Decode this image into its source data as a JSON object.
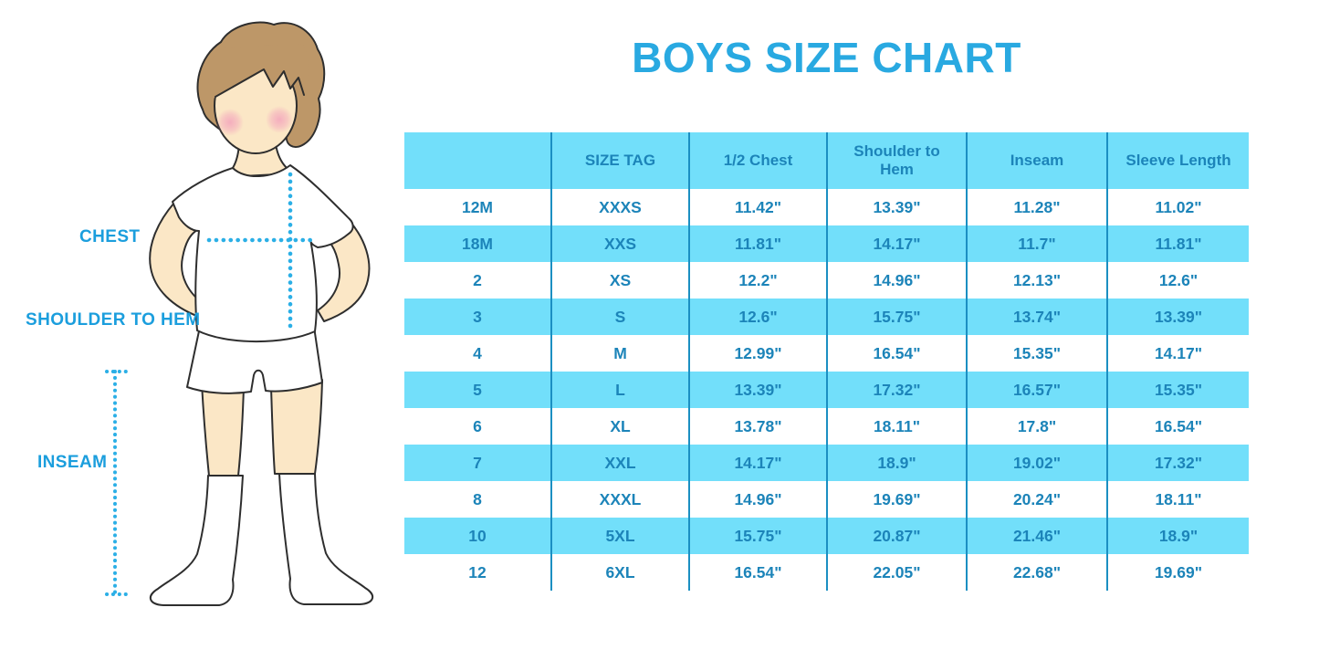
{
  "title": "BOYS SIZE CHART",
  "figure": {
    "chest_label": "CHEST",
    "shoulder_to_hem_label": "SHOULDER TO HEM",
    "inseam_label": "INSEAM"
  },
  "colors": {
    "title_blue": "#29a9e1",
    "label_blue": "#1b9edd",
    "dotted_line_blue": "#2bafe6",
    "row_band_blue": "#72dffa",
    "grid_line_blue": "#1b8fc2",
    "table_text_blue": "#1c84b9",
    "skin": "#fbe7c6",
    "hair": "#bd9768"
  },
  "chart_data": {
    "type": "table",
    "title": "BOYS SIZE CHART",
    "columns": [
      "",
      "SIZE TAG",
      "1/2 Chest",
      "Shoulder to Hem",
      "Inseam",
      "Sleeve Length"
    ],
    "rows": [
      [
        "12M",
        "XXXS",
        "11.42\"",
        "13.39\"",
        "11.28\"",
        "11.02\""
      ],
      [
        "18M",
        "XXS",
        "11.81\"",
        "14.17\"",
        "11.7\"",
        "11.81\""
      ],
      [
        "2",
        "XS",
        "12.2\"",
        "14.96\"",
        "12.13\"",
        "12.6\""
      ],
      [
        "3",
        "S",
        "12.6\"",
        "15.75\"",
        "13.74\"",
        "13.39\""
      ],
      [
        "4",
        "M",
        "12.99\"",
        "16.54\"",
        "15.35\"",
        "14.17\""
      ],
      [
        "5",
        "L",
        "13.39\"",
        "17.32\"",
        "16.57\"",
        "15.35\""
      ],
      [
        "6",
        "XL",
        "13.78\"",
        "18.11\"",
        "17.8\"",
        "16.54\""
      ],
      [
        "7",
        "XXL",
        "14.17\"",
        "18.9\"",
        "19.02\"",
        "17.32\""
      ],
      [
        "8",
        "XXXL",
        "14.96\"",
        "19.69\"",
        "20.24\"",
        "18.11\""
      ],
      [
        "10",
        "5XL",
        "15.75\"",
        "20.87\"",
        "21.46\"",
        "18.9\""
      ],
      [
        "12",
        "6XL",
        "16.54\"",
        "22.05\"",
        "22.68\"",
        "19.69\""
      ]
    ]
  }
}
